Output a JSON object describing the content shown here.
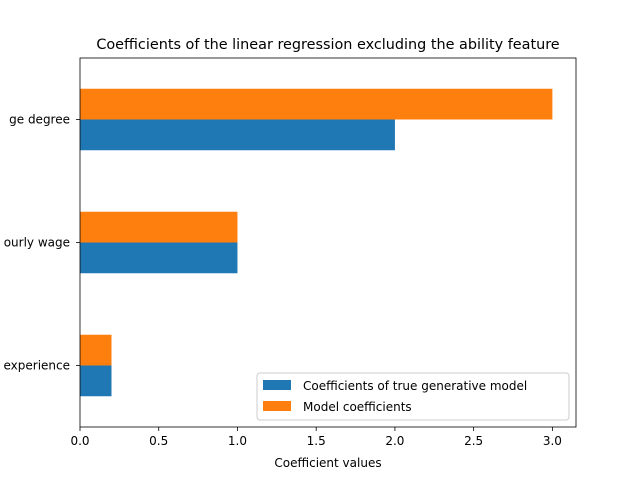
{
  "chart_data": {
    "type": "bar",
    "orientation": "horizontal",
    "title": "Coefficients of the linear regression excluding the ability feature",
    "xlabel": "Coefficient values",
    "ylabel": "",
    "categories": [
      "experience",
      "hourly wage",
      "college degree"
    ],
    "category_tick_labels": [
      "experience",
      "ourly wage",
      "ge degree"
    ],
    "series": [
      {
        "name": "Coefficients of true generative model",
        "color": "#1f77b4",
        "values": [
          0.2,
          1.0,
          2.0
        ]
      },
      {
        "name": "Model coefficients",
        "color": "#ff7f0e",
        "values": [
          0.2,
          1.0,
          3.0
        ]
      }
    ],
    "xlim": [
      0,
      3.15
    ],
    "xticks": [
      0.0,
      0.5,
      1.0,
      1.5,
      2.0,
      2.5,
      3.0
    ],
    "xtick_labels": [
      "0.0",
      "0.5",
      "1.0",
      "1.5",
      "2.0",
      "2.5",
      "3.0"
    ],
    "grid": false,
    "legend_placement": "lower-right"
  }
}
